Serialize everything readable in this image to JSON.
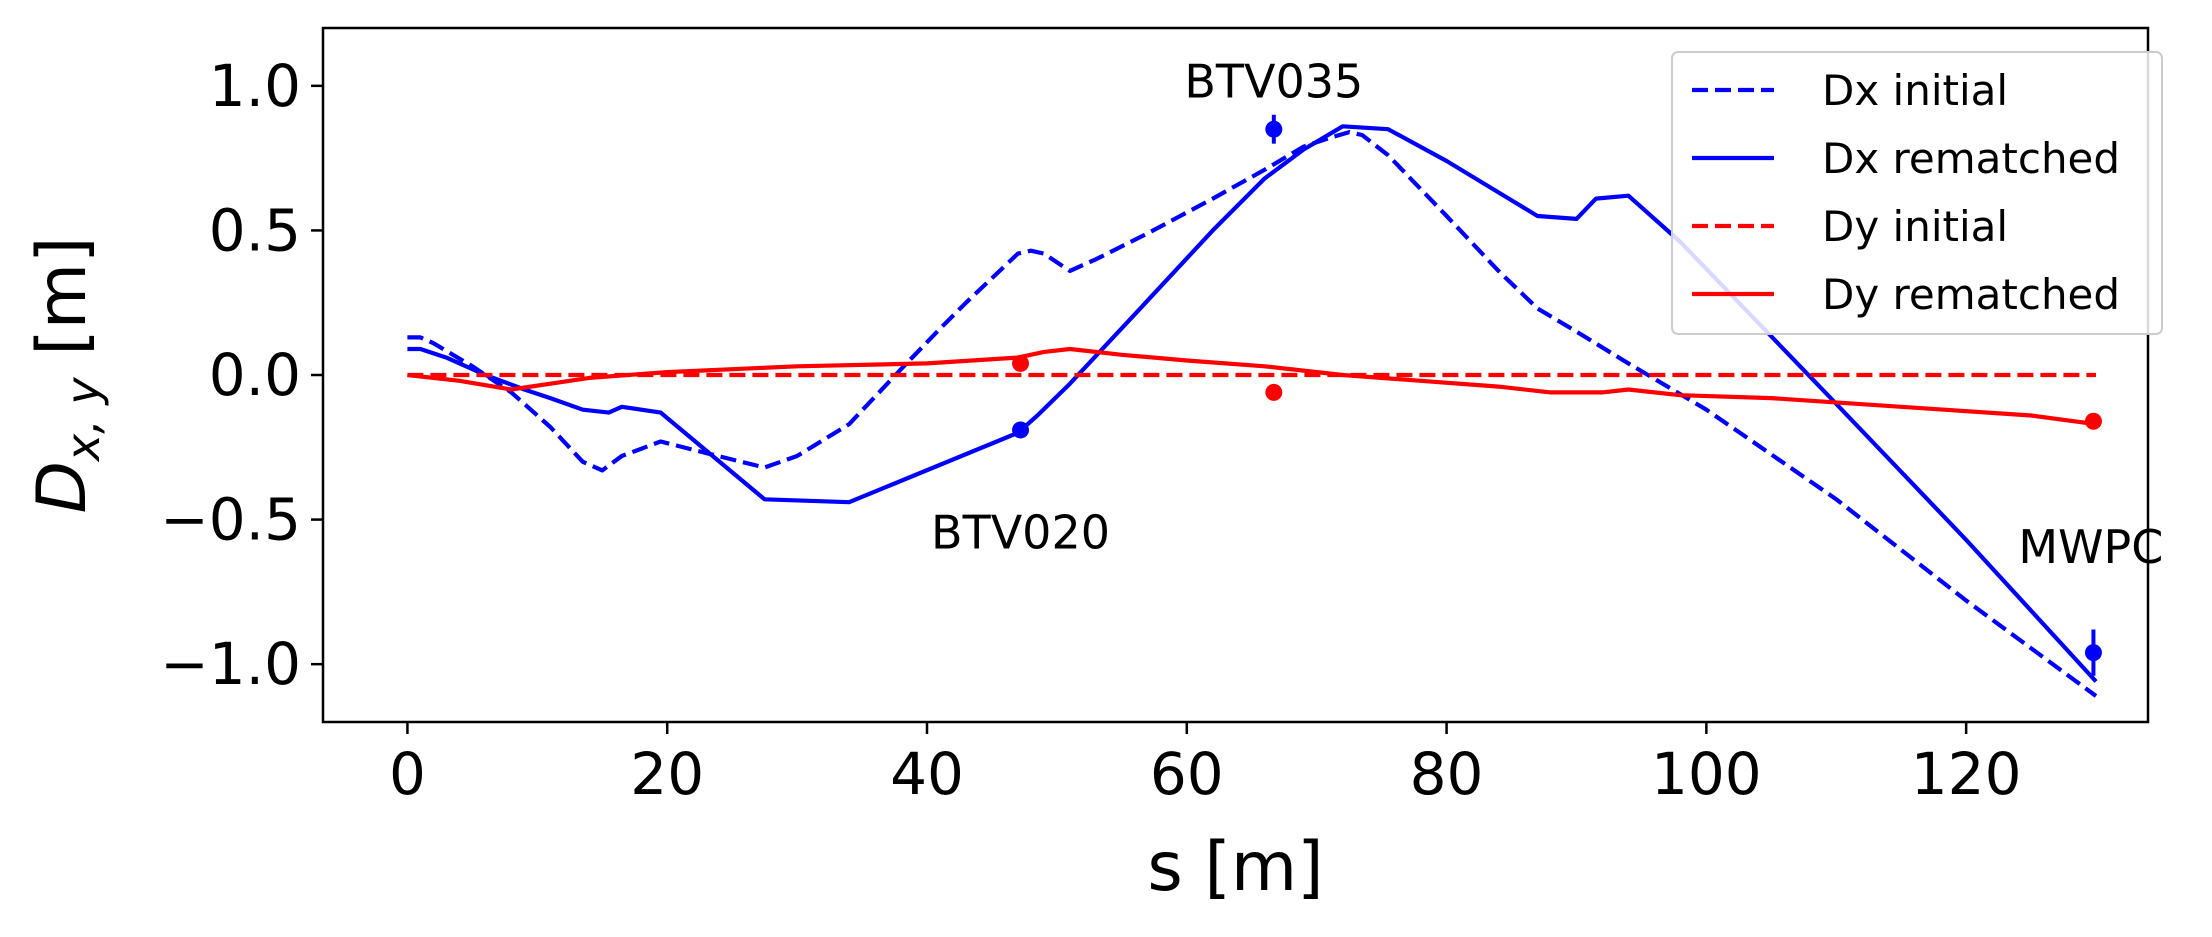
{
  "chart_data": {
    "type": "line",
    "title": "",
    "xlabel": "s [m]",
    "ylabel": {
      "base": "D",
      "sub": "x, y",
      "unit": " [m]"
    },
    "xlim": [
      -6.5,
      134
    ],
    "ylim": [
      -1.2,
      1.2
    ],
    "xticks": [
      0,
      20,
      40,
      60,
      80,
      100,
      120
    ],
    "xtick_labels": [
      "0",
      "20",
      "40",
      "60",
      "80",
      "100",
      "120"
    ],
    "yticks": [
      1.0,
      0.5,
      0.0,
      -0.5,
      -1.0
    ],
    "ytick_labels": [
      "1.0",
      "0.5",
      "0.0",
      "−0.5",
      "−1.0"
    ],
    "grid": false,
    "legend_position": "top-right",
    "series": [
      {
        "name": "Dx initial",
        "color": "#0000ff",
        "dash": "dashed",
        "x": [
          0,
          1,
          2,
          5,
          8,
          11,
          13.5,
          15,
          16.5,
          19.5,
          23,
          27.5,
          30,
          34,
          38,
          41,
          43,
          47,
          48,
          49,
          51,
          53,
          57,
          62,
          66,
          69,
          71,
          72.5,
          73.5,
          75.5,
          80,
          84,
          87,
          90,
          94,
          100,
          110,
          120,
          130
        ],
        "y": [
          0.13,
          0.13,
          0.11,
          0.03,
          -0.06,
          -0.18,
          -0.3,
          -0.33,
          -0.28,
          -0.23,
          -0.27,
          -0.32,
          -0.28,
          -0.17,
          0.02,
          0.16,
          0.25,
          0.42,
          0.43,
          0.42,
          0.36,
          0.4,
          0.49,
          0.61,
          0.71,
          0.79,
          0.82,
          0.84,
          0.83,
          0.76,
          0.55,
          0.36,
          0.23,
          0.15,
          0.04,
          -0.12,
          -0.43,
          -0.78,
          -1.11
        ]
      },
      {
        "name": "Dx rematched",
        "color": "#0000ff",
        "dash": "solid",
        "x": [
          0,
          1,
          3,
          6,
          9,
          11,
          13.5,
          15.5,
          16.5,
          19.5,
          27.5,
          34,
          47,
          48.5,
          51,
          56,
          62,
          66,
          69,
          72,
          75.5,
          80,
          87,
          90,
          91.5,
          94,
          98,
          110,
          120,
          130
        ],
        "y": [
          0.09,
          0.09,
          0.06,
          0.0,
          -0.05,
          -0.08,
          -0.12,
          -0.13,
          -0.11,
          -0.13,
          -0.43,
          -0.44,
          -0.2,
          -0.14,
          -0.03,
          0.21,
          0.5,
          0.68,
          0.78,
          0.86,
          0.85,
          0.74,
          0.55,
          0.54,
          0.61,
          0.62,
          0.46,
          -0.1,
          -0.57,
          -1.06
        ]
      },
      {
        "name": "Dy initial",
        "color": "#ff0000",
        "dash": "dashed",
        "x": [
          0,
          130
        ],
        "y": [
          0.0,
          0.0
        ]
      },
      {
        "name": "Dy rematched",
        "color": "#ff0000",
        "dash": "solid",
        "x": [
          0,
          4,
          8,
          14,
          20,
          30,
          40,
          47,
          49,
          51,
          55,
          60,
          66,
          72,
          78,
          84,
          88,
          90,
          92,
          94,
          98,
          105,
          115,
          125,
          130
        ],
        "y": [
          0.0,
          -0.02,
          -0.05,
          -0.01,
          0.01,
          0.03,
          0.04,
          0.06,
          0.08,
          0.09,
          0.07,
          0.05,
          0.03,
          0.0,
          -0.02,
          -0.04,
          -0.06,
          -0.06,
          -0.06,
          -0.05,
          -0.07,
          -0.08,
          -0.11,
          -0.14,
          -0.17
        ]
      }
    ],
    "measurements": [
      {
        "series": "Dx",
        "color": "#0000ff",
        "x": 47.2,
        "y": -0.19,
        "err": 0.02
      },
      {
        "series": "Dx",
        "color": "#0000ff",
        "x": 66.7,
        "y": 0.85,
        "err": 0.05
      },
      {
        "series": "Dx",
        "color": "#0000ff",
        "x": 129.8,
        "y": -0.96,
        "err": 0.08
      },
      {
        "series": "Dy",
        "color": "#ff0000",
        "x": 47.2,
        "y": 0.04,
        "err": 0.015
      },
      {
        "series": "Dy",
        "color": "#ff0000",
        "x": 66.7,
        "y": -0.06,
        "err": 0.015
      },
      {
        "series": "Dy",
        "color": "#ff0000",
        "x": 129.8,
        "y": -0.16,
        "err": 0.015
      }
    ],
    "annotations": [
      {
        "text": "BTV035",
        "x": 66.7,
        "y": 0.96
      },
      {
        "text": "BTV020",
        "x": 47.2,
        "y": -0.6
      },
      {
        "text": "MWPC",
        "x": 129.6,
        "y": -0.65
      }
    ]
  }
}
